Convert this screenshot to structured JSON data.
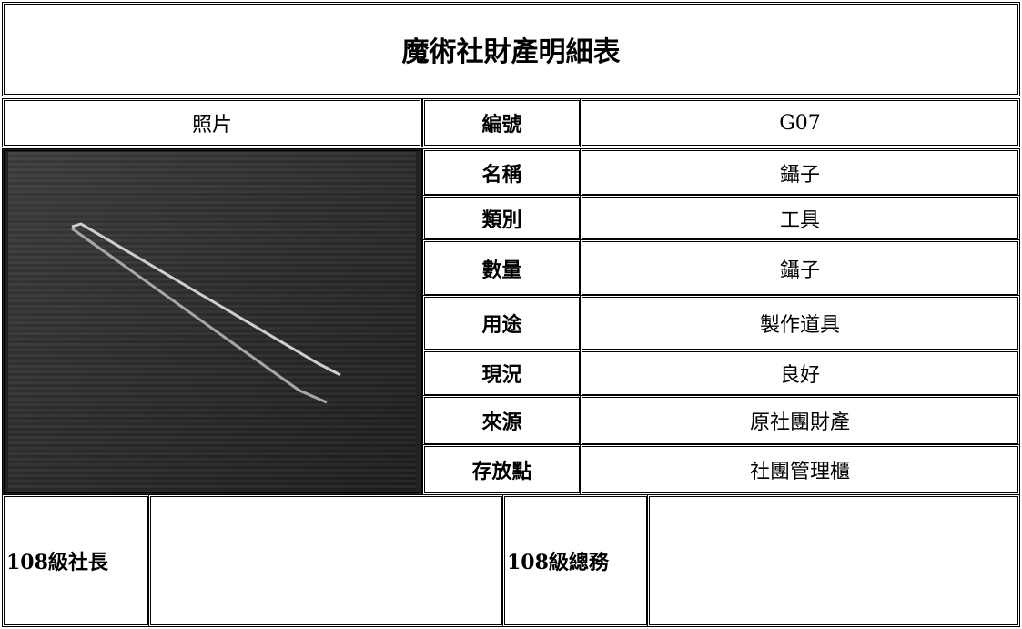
{
  "title": "魔術社財產明細表",
  "photo_header": "照片",
  "fields": [
    {
      "label": "編號",
      "value": "G07"
    },
    {
      "label": "名稱",
      "value": "鑷子"
    },
    {
      "label": "類別",
      "value": "工具"
    },
    {
      "label": "數量",
      "value": "鑷子"
    },
    {
      "label": "用途",
      "value": "製作道具"
    },
    {
      "label": "現況",
      "value": "良好"
    },
    {
      "label": "來源",
      "value": "原社團財產"
    },
    {
      "label": "存放點",
      "value": "社團管理櫃"
    }
  ],
  "signatures": [
    {
      "label": "108級社長"
    },
    {
      "label": "108級總務"
    }
  ]
}
